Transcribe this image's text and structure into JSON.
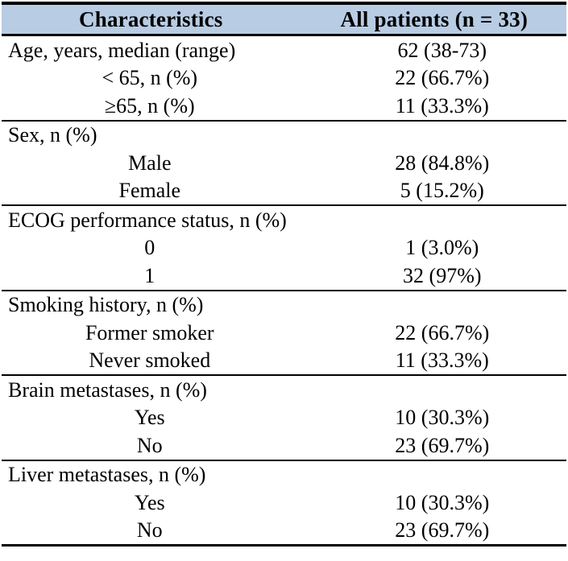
{
  "colors": {
    "header_bg": "#b8cce4",
    "border": "#000000",
    "text": "#000000",
    "page_bg": "#ffffff"
  },
  "header": {
    "characteristics": "Characteristics",
    "all_patients": "All patients (n = 33)"
  },
  "rows": [
    {
      "label": "Age, years, median (range)",
      "value": "62 (38-73)"
    },
    {
      "label": "< 65, n (%)",
      "value": "22 (66.7%)"
    },
    {
      "label": "≥65, n (%)",
      "value": "11 (33.3%)"
    },
    {
      "label": "Sex, n (%)",
      "value": ""
    },
    {
      "label": "Male",
      "value": "28 (84.8%)"
    },
    {
      "label": "Female",
      "value": "5 (15.2%)"
    },
    {
      "label": "ECOG performance status, n (%)",
      "value": ""
    },
    {
      "label": "0",
      "value": "1 (3.0%)"
    },
    {
      "label": "1",
      "value": "32 (97%)"
    },
    {
      "label": "Smoking history, n (%)",
      "value": ""
    },
    {
      "label": "Former smoker",
      "value": "22 (66.7%)"
    },
    {
      "label": "Never smoked",
      "value": "11 (33.3%)"
    },
    {
      "label": "Brain metastases, n (%)",
      "value": ""
    },
    {
      "label": "Yes",
      "value": "10 (30.3%)"
    },
    {
      "label": "No",
      "value": "23 (69.7%)"
    },
    {
      "label": "Liver metastases, n (%)",
      "value": ""
    },
    {
      "label": "Yes",
      "value": "10 (30.3%)"
    },
    {
      "label": "No",
      "value": "23 (69.7%)"
    }
  ],
  "chart_data": {
    "type": "table",
    "title": "",
    "columns": [
      "Characteristics",
      "All patients (n = 33)"
    ],
    "sections": [
      {
        "category": "Age, years, median (range)",
        "category_value": "62 (38-73)",
        "items": [
          {
            "label": "< 65, n (%)",
            "value": "22 (66.7%)"
          },
          {
            "label": "≥65, n (%)",
            "value": "11 (33.3%)"
          }
        ]
      },
      {
        "category": "Sex, n (%)",
        "category_value": "",
        "items": [
          {
            "label": "Male",
            "value": "28 (84.8%)"
          },
          {
            "label": "Female",
            "value": "5 (15.2%)"
          }
        ]
      },
      {
        "category": "ECOG performance status, n (%)",
        "category_value": "",
        "items": [
          {
            "label": "0",
            "value": "1 (3.0%)"
          },
          {
            "label": "1",
            "value": "32 (97%)"
          }
        ]
      },
      {
        "category": "Smoking history, n (%)",
        "category_value": "",
        "items": [
          {
            "label": "Former smoker",
            "value": "22 (66.7%)"
          },
          {
            "label": "Never smoked",
            "value": "11 (33.3%)"
          }
        ]
      },
      {
        "category": "Brain metastases, n (%)",
        "category_value": "",
        "items": [
          {
            "label": "Yes",
            "value": "10 (30.3%)"
          },
          {
            "label": "No",
            "value": "23 (69.7%)"
          }
        ]
      },
      {
        "category": "Liver metastases, n (%)",
        "category_value": "",
        "items": [
          {
            "label": "Yes",
            "value": "10 (30.3%)"
          },
          {
            "label": "No",
            "value": "23 (69.7%)"
          }
        ]
      }
    ]
  }
}
